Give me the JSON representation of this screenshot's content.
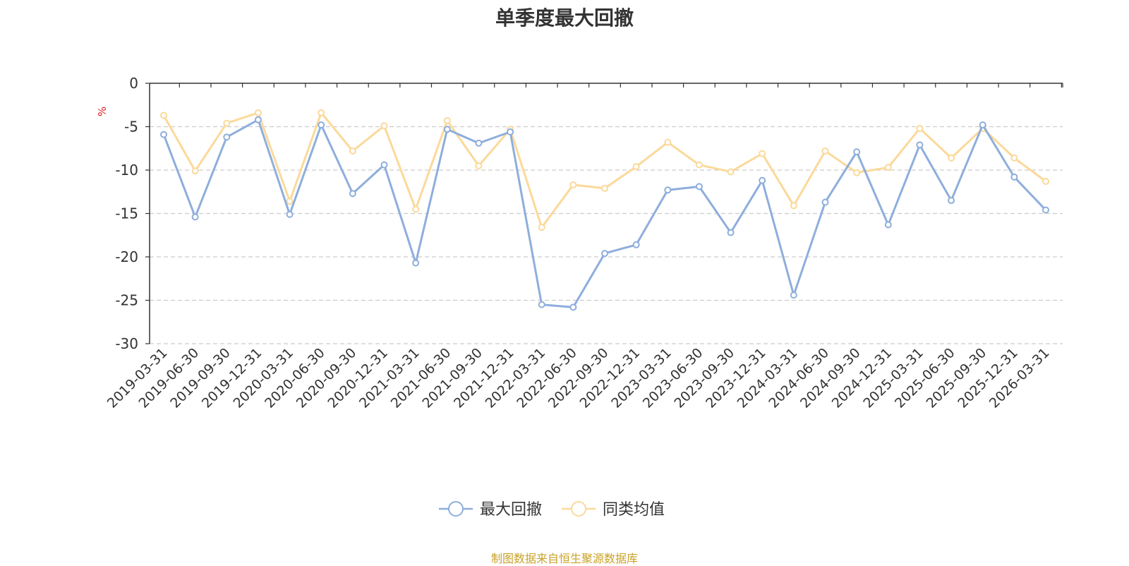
{
  "chart_data": {
    "type": "line",
    "title": "单季度最大回撤",
    "ylabel": "%",
    "ylim": [
      -30,
      0
    ],
    "yticks": [
      0,
      -5,
      -10,
      -15,
      -20,
      -25,
      -30
    ],
    "grid": true,
    "legend_position": "bottom",
    "categories": [
      "2019-03-31",
      "2019-06-30",
      "2019-09-30",
      "2019-12-31",
      "2020-03-31",
      "2020-06-30",
      "2020-09-30",
      "2020-12-31",
      "2021-03-31",
      "2021-06-30",
      "2021-09-30",
      "2021-12-31",
      "2022-03-31",
      "2022-06-30",
      "2022-09-30",
      "2022-12-31",
      "2023-03-31",
      "2023-06-30",
      "2023-09-30",
      "2023-12-31",
      "2024-03-31",
      "2024-06-30",
      "2024-09-30",
      "2024-12-31",
      "2025-03-31",
      "2025-06-30",
      "2025-09-30",
      "2025-12-31",
      "2026-03-31"
    ],
    "series": [
      {
        "name": "最大回撤",
        "color": "#8eaedc",
        "values": [
          -5.9,
          -15.4,
          -6.2,
          -4.2,
          -15.1,
          -4.8,
          -12.7,
          -9.4,
          -20.7,
          -5.3,
          -6.9,
          -5.6,
          -25.5,
          -25.8,
          -19.6,
          -18.6,
          -12.3,
          -11.9,
          -17.2,
          -11.2,
          -24.4,
          -13.7,
          -7.9,
          -16.3,
          -7.1,
          -13.5,
          -4.8,
          -10.8,
          -14.6
        ]
      },
      {
        "name": "同类均值",
        "color": "#fbd99a",
        "values": [
          -3.7,
          -10.1,
          -4.6,
          -3.4,
          -13.6,
          -3.4,
          -7.8,
          -4.9,
          -14.5,
          -4.3,
          -9.5,
          -5.3,
          -16.6,
          -11.7,
          -12.1,
          -9.6,
          -6.8,
          -9.4,
          -10.2,
          -8.1,
          -14.1,
          -7.8,
          -10.3,
          -9.7,
          -5.2,
          -8.6,
          -5.2,
          -8.6,
          -11.3
        ]
      }
    ]
  },
  "footer": {
    "source": "制图数据来自恒生聚源数据库"
  }
}
